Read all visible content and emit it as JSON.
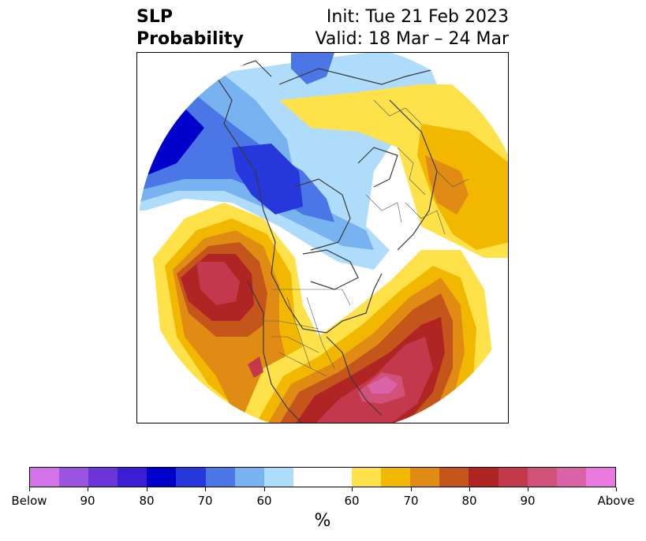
{
  "title": {
    "variable": "SLP",
    "kind": "Probability",
    "init": "Init: Tue 21 Feb 2023",
    "valid": "Valid: 18 Mar – 24 Mar"
  },
  "colorbar": {
    "unit": "%",
    "below_colors": [
      "#d373e8",
      "#9a55e0",
      "#6a36d8",
      "#3b1ed4",
      "#0000cc",
      "#2638dc",
      "#4b77e6",
      "#78b2f0",
      "#aedcfa"
    ],
    "neutral_color": "#ffffff",
    "above_colors": [
      "#ffe14a",
      "#f2b800",
      "#e08c14",
      "#c4561c",
      "#b02424",
      "#c4384c",
      "#d0527a",
      "#da62a6",
      "#e87ae0"
    ],
    "tick_labels": [
      "Below",
      "90",
      "80",
      "70",
      "60",
      "60",
      "70",
      "80",
      "90",
      "Above"
    ]
  }
}
